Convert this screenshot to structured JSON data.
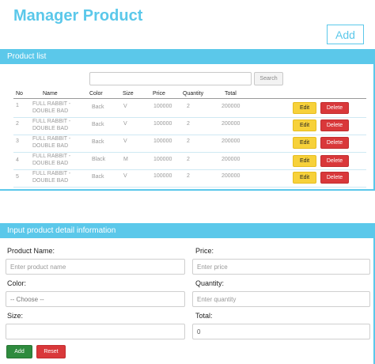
{
  "page": {
    "title": "Manager Product",
    "add_label": "Add"
  },
  "list": {
    "header": "Product list",
    "search_placeholder": "",
    "search_label": "Search",
    "columns": [
      "No",
      "Name",
      "Color",
      "Size",
      "Price",
      "Quantity",
      "Total"
    ],
    "edit_label": "Edit",
    "delete_label": "Delete",
    "rows": [
      {
        "no": "1",
        "name1": "FULL RABBIT -",
        "name2": "DOUBLE BAD",
        "color": "Back",
        "size": "V",
        "price": "100000",
        "quantity": "2",
        "total": "200000"
      },
      {
        "no": "2",
        "name1": "FULL RABBIT -",
        "name2": "DOUBLE BAD",
        "color": "Back",
        "size": "V",
        "price": "100000",
        "quantity": "2",
        "total": "200000"
      },
      {
        "no": "3",
        "name1": "FULL RABBIT -",
        "name2": "DOUBLE BAD",
        "color": "Back",
        "size": "V",
        "price": "100000",
        "quantity": "2",
        "total": "200000"
      },
      {
        "no": "4",
        "name1": "FULL RABBIT -",
        "name2": "DOUBLE BAD",
        "color": "Black",
        "size": "M",
        "price": "100000",
        "quantity": "2",
        "total": "200000"
      },
      {
        "no": "5",
        "name1": "FULL RABBIT -",
        "name2": "DOUBLE BAD",
        "color": "Back",
        "size": "V",
        "price": "100000",
        "quantity": "2",
        "total": "200000"
      }
    ]
  },
  "form": {
    "header": "Input product detail information",
    "name_label": "Product Name:",
    "name_placeholder": "Enter product name",
    "price_label": "Price:",
    "price_placeholder": "Enter price",
    "color_label": "Color:",
    "color_value": "-- Choose --",
    "quantity_label": "Quantity:",
    "quantity_placeholder": "Enter quantity",
    "size_label": "Size:",
    "size_value": "",
    "total_label": "Total:",
    "total_value": "0",
    "add_label": "Add",
    "reset_label": "Reset"
  },
  "colors": {
    "accent": "#5bc8ea",
    "edit": "#f7d13a",
    "delete": "#d9383a",
    "add": "#2e8b3e"
  }
}
